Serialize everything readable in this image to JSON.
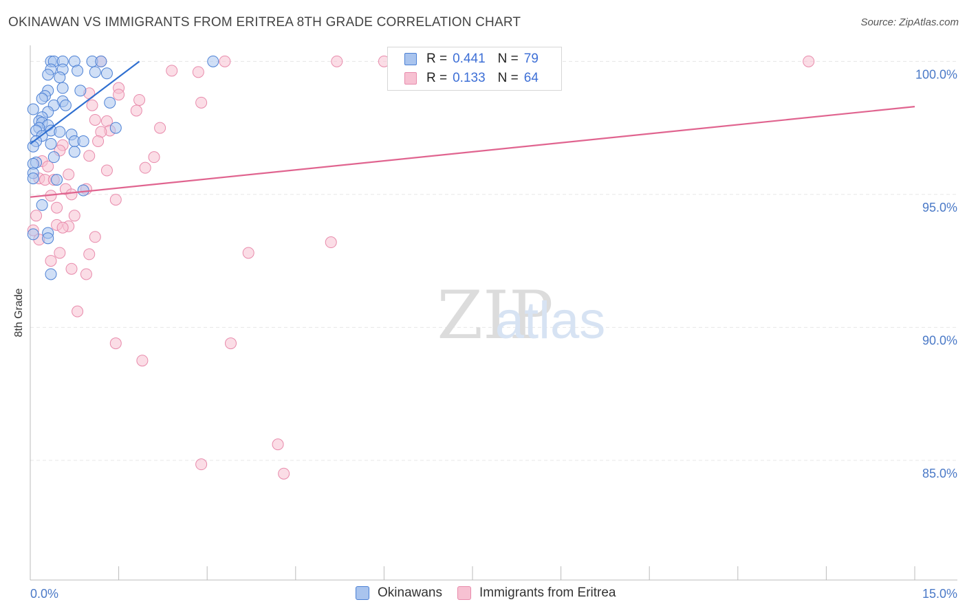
{
  "header": {
    "title": "OKINAWAN VS IMMIGRANTS FROM ERITREA 8TH GRADE CORRELATION CHART",
    "source": "Source: ZipAtlas.com"
  },
  "watermark": {
    "zip": "ZIP",
    "atlas": "atlas"
  },
  "legend_top": [
    {
      "r_label": "R =",
      "r_value": "0.441",
      "n_label": "N =",
      "n_value": "79"
    },
    {
      "r_label": "R =",
      "r_value": "0.133",
      "n_label": "N =",
      "n_value": "64"
    }
  ],
  "legend_bottom": [
    {
      "label": "Okinawans"
    },
    {
      "label": "Immigrants from Eritrea"
    }
  ],
  "colors": {
    "okinawan_fill": "#a9c4ee",
    "okinawan_stroke": "#4a7fd4",
    "okinawan_line": "#2f6fd0",
    "eritrea_fill": "#f7c1d2",
    "eritrea_stroke": "#e88aab",
    "eritrea_line": "#e0648f",
    "axis_text": "#4a79c7",
    "grid": "#e6e6e6"
  },
  "chart_data": {
    "type": "scatter",
    "title": "OKINAWAN VS IMMIGRANTS FROM ERITREA 8TH GRADE CORRELATION CHART",
    "xlabel": "",
    "ylabel": "8th Grade",
    "xlim": [
      0,
      15
    ],
    "ylim": [
      80.5,
      100.5
    ],
    "x_tick_labels": [
      "0.0%",
      "15.0%"
    ],
    "y_ticks": [
      85,
      90,
      95,
      100
    ],
    "y_tick_labels": [
      "85.0%",
      "90.0%",
      "95.0%",
      "100.0%"
    ],
    "grid": true,
    "legend_placement": "top-center",
    "series": [
      {
        "name": "Okinawans",
        "R": 0.441,
        "N": 79,
        "trend": {
          "x": [
            0.0,
            1.85
          ],
          "y": [
            96.9,
            100.0
          ]
        },
        "points": [
          [
            0.35,
            100.0
          ],
          [
            0.4,
            100.0
          ],
          [
            0.55,
            100.0
          ],
          [
            0.75,
            100.0
          ],
          [
            1.05,
            100.0
          ],
          [
            1.2,
            100.0
          ],
          [
            3.1,
            100.0
          ],
          [
            0.35,
            99.7
          ],
          [
            0.55,
            99.7
          ],
          [
            0.8,
            99.65
          ],
          [
            1.1,
            99.6
          ],
          [
            1.3,
            99.55
          ],
          [
            0.3,
            99.5
          ],
          [
            0.5,
            99.4
          ],
          [
            0.55,
            99.0
          ],
          [
            0.85,
            98.9
          ],
          [
            0.3,
            98.9
          ],
          [
            0.25,
            98.7
          ],
          [
            0.2,
            98.6
          ],
          [
            0.55,
            98.5
          ],
          [
            1.35,
            98.45
          ],
          [
            0.4,
            98.35
          ],
          [
            0.6,
            98.35
          ],
          [
            0.05,
            98.2
          ],
          [
            0.3,
            98.1
          ],
          [
            0.2,
            97.9
          ],
          [
            0.15,
            97.75
          ],
          [
            0.2,
            97.7
          ],
          [
            0.3,
            97.6
          ],
          [
            0.15,
            97.5
          ],
          [
            1.45,
            97.5
          ],
          [
            0.1,
            97.4
          ],
          [
            0.35,
            97.4
          ],
          [
            0.5,
            97.35
          ],
          [
            0.7,
            97.25
          ],
          [
            0.2,
            97.2
          ],
          [
            0.1,
            97.0
          ],
          [
            0.75,
            97.0
          ],
          [
            0.9,
            97.0
          ],
          [
            0.35,
            96.9
          ],
          [
            0.05,
            96.8
          ],
          [
            0.75,
            96.6
          ],
          [
            0.4,
            96.4
          ],
          [
            0.1,
            96.2
          ],
          [
            0.05,
            96.15
          ],
          [
            0.05,
            95.8
          ],
          [
            0.05,
            95.6
          ],
          [
            0.45,
            95.55
          ],
          [
            0.9,
            95.15
          ],
          [
            0.2,
            94.6
          ],
          [
            0.05,
            93.5
          ],
          [
            0.3,
            93.55
          ],
          [
            0.3,
            93.35
          ],
          [
            0.35,
            92.0
          ]
        ]
      },
      {
        "name": "Immigrants from Eritrea",
        "R": 0.133,
        "N": 64,
        "trend": {
          "x": [
            0.0,
            15.0
          ],
          "y": [
            94.9,
            98.3
          ]
        },
        "points": [
          [
            1.2,
            100.0
          ],
          [
            3.3,
            100.0
          ],
          [
            5.2,
            100.0
          ],
          [
            6.0,
            100.0
          ],
          [
            6.8,
            100.0
          ],
          [
            13.2,
            100.0
          ],
          [
            2.4,
            99.65
          ],
          [
            2.85,
            99.6
          ],
          [
            1.5,
            99.0
          ],
          [
            1.0,
            98.8
          ],
          [
            1.5,
            98.75
          ],
          [
            1.85,
            98.55
          ],
          [
            2.9,
            98.45
          ],
          [
            1.05,
            98.35
          ],
          [
            1.8,
            98.15
          ],
          [
            1.1,
            97.8
          ],
          [
            1.3,
            97.75
          ],
          [
            2.2,
            97.5
          ],
          [
            1.35,
            97.4
          ],
          [
            1.2,
            97.35
          ],
          [
            1.15,
            97.0
          ],
          [
            0.55,
            96.85
          ],
          [
            0.5,
            96.65
          ],
          [
            1.0,
            96.45
          ],
          [
            2.1,
            96.4
          ],
          [
            0.2,
            96.25
          ],
          [
            0.3,
            96.05
          ],
          [
            1.95,
            96.0
          ],
          [
            1.3,
            95.9
          ],
          [
            0.65,
            95.75
          ],
          [
            0.15,
            95.6
          ],
          [
            0.25,
            95.55
          ],
          [
            0.4,
            95.55
          ],
          [
            0.6,
            95.2
          ],
          [
            0.95,
            95.2
          ],
          [
            0.7,
            95.0
          ],
          [
            0.35,
            94.95
          ],
          [
            1.45,
            94.8
          ],
          [
            0.45,
            94.5
          ],
          [
            0.1,
            94.2
          ],
          [
            0.75,
            94.2
          ],
          [
            0.45,
            93.85
          ],
          [
            0.65,
            93.8
          ],
          [
            0.55,
            93.75
          ],
          [
            0.05,
            93.65
          ],
          [
            1.1,
            93.4
          ],
          [
            5.1,
            93.2
          ],
          [
            0.15,
            93.3
          ],
          [
            0.5,
            92.8
          ],
          [
            1.0,
            92.75
          ],
          [
            3.7,
            92.8
          ],
          [
            0.35,
            92.5
          ],
          [
            0.7,
            92.2
          ],
          [
            0.95,
            92.0
          ],
          [
            0.8,
            90.6
          ],
          [
            1.45,
            89.4
          ],
          [
            3.4,
            89.4
          ],
          [
            1.9,
            88.75
          ],
          [
            4.2,
            85.6
          ],
          [
            2.9,
            84.85
          ],
          [
            4.3,
            84.5
          ]
        ]
      }
    ]
  }
}
